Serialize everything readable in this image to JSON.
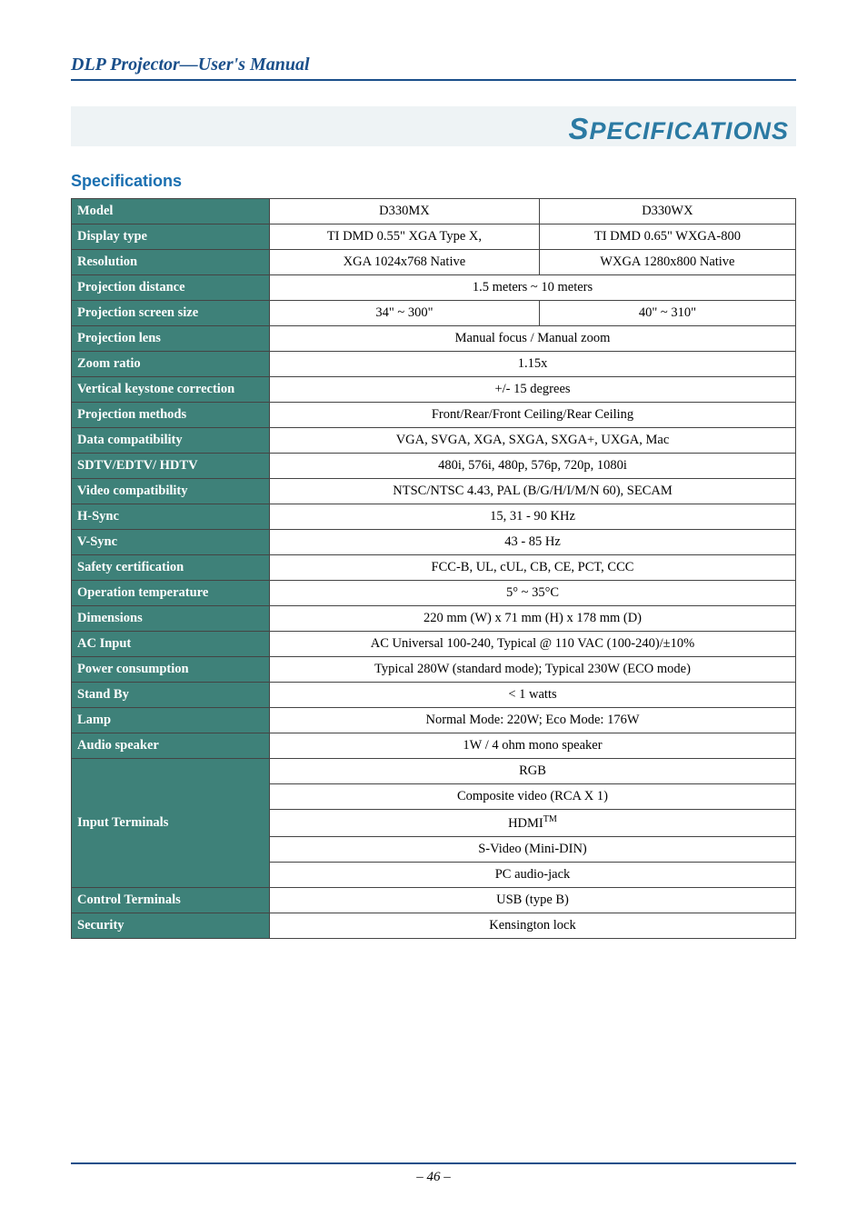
{
  "header": {
    "title": "DLP Projector—User's Manual"
  },
  "chapter": {
    "title_html": "<span class='cap'>S</span>PECIFICATIONS"
  },
  "section": {
    "title": "Specifications"
  },
  "table": {
    "header_bg": "#3e8179",
    "header_fg": "#ffffff",
    "border_color": "#444444",
    "rows": [
      {
        "label": "Model",
        "kind": "split",
        "left": "D330MX",
        "right": "D330WX"
      },
      {
        "label": "Display type",
        "kind": "split",
        "left": "TI DMD 0.55\" XGA Type X,",
        "right": "TI DMD 0.65\" WXGA-800"
      },
      {
        "label": "Resolution",
        "kind": "split",
        "left": "XGA 1024x768 Native",
        "right": "WXGA 1280x800 Native"
      },
      {
        "label": "Projection distance",
        "kind": "span",
        "value": "1.5 meters ~ 10 meters"
      },
      {
        "label": "Projection screen size",
        "kind": "split",
        "left": "34\" ~ 300\"",
        "right": "40\" ~ 310\""
      },
      {
        "label": "Projection lens",
        "kind": "span",
        "value": "Manual focus / Manual zoom"
      },
      {
        "label": "Zoom ratio",
        "kind": "span",
        "value": "1.15x"
      },
      {
        "label": "Vertical keystone correction",
        "kind": "span",
        "value": "+/- 15 degrees"
      },
      {
        "label": "Projection methods",
        "kind": "span",
        "value": "Front/Rear/Front Ceiling/Rear Ceiling"
      },
      {
        "label": "Data compatibility",
        "kind": "span",
        "value": "VGA, SVGA, XGA, SXGA, SXGA+, UXGA, Mac"
      },
      {
        "label": "SDTV/EDTV/ HDTV",
        "kind": "span",
        "value": "480i, 576i, 480p, 576p, 720p, 1080i"
      },
      {
        "label": "Video compatibility",
        "kind": "span",
        "value": "NTSC/NTSC 4.43, PAL (B/G/H/I/M/N 60), SECAM"
      },
      {
        "label": "H-Sync",
        "kind": "span",
        "value": "15, 31 - 90 KHz"
      },
      {
        "label": "V-Sync",
        "kind": "span",
        "value": "43 - 85 Hz"
      },
      {
        "label": "Safety certification",
        "kind": "span",
        "value": "FCC-B, UL, cUL, CB, CE, PCT, CCC"
      },
      {
        "label": "Operation temperature",
        "kind": "span",
        "value": "5° ~ 35°C"
      },
      {
        "label": "Dimensions",
        "kind": "span",
        "value": "220 mm (W) x 71 mm (H) x 178 mm (D)"
      },
      {
        "label": "AC Input",
        "kind": "span",
        "value": "AC Universal 100-240, Typical @ 110 VAC (100-240)/±10%"
      },
      {
        "label": "Power consumption",
        "kind": "span",
        "value": "Typical 280W (standard mode); Typical 230W (ECO mode)"
      },
      {
        "label": "Stand By",
        "kind": "span",
        "value": "< 1 watts"
      },
      {
        "label": "Lamp",
        "kind": "span",
        "value": "Normal Mode: 220W; Eco Mode: 176W"
      },
      {
        "label": "Audio speaker",
        "kind": "span",
        "value": "1W / 4 ohm mono speaker"
      },
      {
        "label": "Input Terminals",
        "kind": "multi",
        "values": [
          "RGB",
          "Composite video (RCA X 1)",
          "HDMI™",
          "S-Video (Mini-DIN)",
          "PC audio-jack"
        ]
      },
      {
        "label": "Control Terminals",
        "kind": "span",
        "value": "USB (type B)"
      },
      {
        "label": "Security",
        "kind": "span",
        "value": "Kensington lock"
      }
    ]
  },
  "footer": {
    "page": "– 46 –"
  },
  "colors": {
    "header_blue": "#1a4f8a",
    "chapter_bg": "#eef3f5",
    "chapter_fg": "#2b7aa3",
    "section_blue": "#1a6fb0"
  }
}
